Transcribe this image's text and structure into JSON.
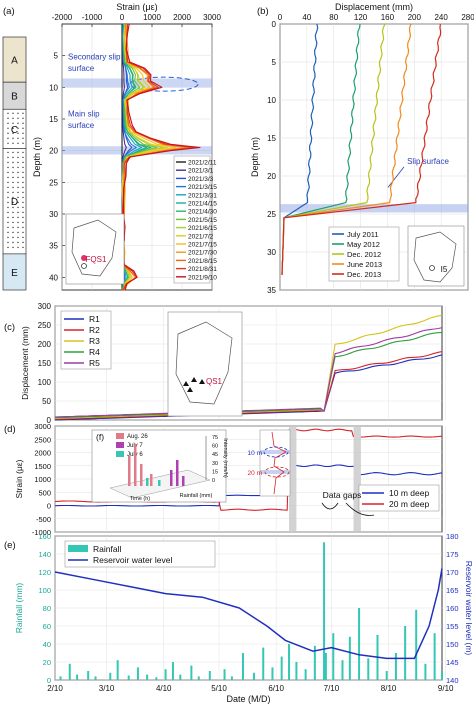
{
  "panels": {
    "a": "(a)",
    "b": "(b)",
    "c": "(c)",
    "d": "(d)",
    "e": "(e)",
    "f": "(f)"
  },
  "column": {
    "layers": [
      {
        "label": "A",
        "top": 0,
        "bottom": 7.5,
        "fill": "#ece4cc"
      },
      {
        "label": "B",
        "top": 7.5,
        "bottom": 12,
        "fill": "#d8d8d8"
      },
      {
        "label": "C",
        "top": 12,
        "bottom": 18.5,
        "fill": "#ffffff"
      },
      {
        "label": "D",
        "top": 18.5,
        "bottom": 36,
        "fill": "#ffffff"
      },
      {
        "label": "E",
        "top": 36,
        "bottom": 42,
        "fill": "#d6e8f4"
      }
    ]
  },
  "chart_data": [
    {
      "id": "a",
      "type": "line",
      "xlabel": "Strain (με)",
      "ylabel": "Depth (m)",
      "xlim": [
        -2000,
        3000
      ],
      "ylim": [
        0,
        42
      ],
      "y_reversed": true,
      "x_ticks": [
        -2000,
        -1000,
        0,
        1000,
        2000,
        3000
      ],
      "y_ticks": [
        5,
        10,
        15,
        20,
        25,
        30,
        35,
        40
      ],
      "annotations": [
        "Secondary slip surface",
        "Main slip surface"
      ],
      "legend_position": "bottom-right",
      "series_template": {
        "depth": [
          0,
          2,
          4,
          6,
          7,
          8,
          9,
          10,
          11,
          12,
          14,
          16,
          17,
          18,
          19,
          19.5,
          20,
          21,
          22,
          24,
          26,
          30,
          32,
          34,
          36,
          38,
          39,
          40,
          41,
          42
        ],
        "base": [
          150,
          120,
          140,
          200,
          650,
          900,
          900,
          1200,
          500,
          150,
          200,
          250,
          400,
          900,
          1500,
          2400,
          1500,
          250,
          80,
          60,
          40,
          30,
          20,
          20,
          20,
          40,
          300,
          450,
          150,
          50
        ]
      },
      "series": [
        {
          "name": "2021/2/11",
          "color": "#1f1f1f",
          "scale": 0.0
        },
        {
          "name": "2021/3/1",
          "color": "#4b2f8f",
          "scale": 0.05
        },
        {
          "name": "2021/3/3",
          "color": "#2d4fd6",
          "scale": 0.12
        },
        {
          "name": "2021/3/15",
          "color": "#1e78d2",
          "scale": 0.2
        },
        {
          "name": "2021/3/31",
          "color": "#1aa3c8",
          "scale": 0.27
        },
        {
          "name": "2021/4/15",
          "color": "#18b19a",
          "scale": 0.33
        },
        {
          "name": "2021/4/30",
          "color": "#2cb46c",
          "scale": 0.4
        },
        {
          "name": "2021/5/15",
          "color": "#6cc040",
          "scale": 0.47
        },
        {
          "name": "2021/6/15",
          "color": "#a7cf2e",
          "scale": 0.55
        },
        {
          "name": "2021/7/2",
          "color": "#d8d21d",
          "scale": 0.63
        },
        {
          "name": "2021/7/15",
          "color": "#f2c01c",
          "scale": 0.75
        },
        {
          "name": "2021/7/30",
          "color": "#f39a17",
          "scale": 0.87
        },
        {
          "name": "2021/8/15",
          "color": "#ee6a12",
          "scale": 0.95
        },
        {
          "name": "2021/8/31",
          "color": "#e2351a",
          "scale": 1.0
        },
        {
          "name": "2021/9/10",
          "color": "#c9121a",
          "scale": 1.05
        }
      ],
      "inset_label": "FQS1"
    },
    {
      "id": "b",
      "type": "line",
      "xlabel": "Displacement (mm)",
      "ylabel": "Depth (m)",
      "xlim": [
        0,
        280
      ],
      "ylim": [
        0,
        35
      ],
      "y_reversed": true,
      "x_ticks": [
        0,
        40,
        80,
        120,
        160,
        200,
        240,
        280
      ],
      "y_ticks": [
        0,
        5,
        10,
        15,
        20,
        25,
        30,
        35
      ],
      "annotations": [
        "Slip surface"
      ],
      "legend_position": "bottom-center",
      "series": [
        {
          "name": "July 2011",
          "color": "#1f5fb8",
          "surface": 55
        },
        {
          "name": "May 2012",
          "color": "#1aa06a",
          "surface": 118
        },
        {
          "name": "Dec. 2012",
          "color": "#b9c21a",
          "surface": 155
        },
        {
          "name": "June 2013",
          "color": "#f08a1c",
          "surface": 195
        },
        {
          "name": "Dec. 2013",
          "color": "#d42a1e",
          "surface": 240
        }
      ],
      "inset_label": "I5"
    },
    {
      "id": "c",
      "type": "line",
      "ylabel": "Displacement (mm)",
      "xlim": [
        0,
        210
      ],
      "ylim": [
        0,
        300
      ],
      "y_ticks": [
        0,
        50,
        100,
        150,
        200,
        250,
        300
      ],
      "legend_position": "top-left",
      "series": [
        {
          "name": "R1",
          "color": "#1f2fbf",
          "end": 170
        },
        {
          "name": "R2",
          "color": "#d8242a",
          "end": 178
        },
        {
          "name": "R3",
          "color": "#d8c21a",
          "end": 275
        },
        {
          "name": "R4",
          "color": "#2ea03c",
          "end": 232
        },
        {
          "name": "R5",
          "color": "#a23aa8",
          "end": 245
        }
      ],
      "inset_label": "QS1"
    },
    {
      "id": "d",
      "type": "line",
      "ylabel": "Strain (με)",
      "xlim": [
        0,
        210
      ],
      "ylim": [
        -1000,
        3000
      ],
      "y_ticks": [
        -1000,
        -500,
        0,
        500,
        1000,
        1500,
        2000,
        2500,
        3000
      ],
      "legend_position": "right",
      "annotations": [
        "Data gaps",
        "10 m",
        "20 m"
      ],
      "data_gaps": [
        [
          127,
          131
        ],
        [
          162,
          166
        ]
      ],
      "series": [
        {
          "name": "10 m deep",
          "color": "#1f2fbf"
        },
        {
          "name": "20 m deep",
          "color": "#d8242a"
        }
      ],
      "inset": {
        "panel": "(f)",
        "legend": [
          "Aug. 26",
          "July 7",
          "July 6"
        ],
        "legend_colors": [
          "#e07b8a",
          "#b040b0",
          "#3dc4b4"
        ],
        "axis_label": "Intensity (mm/h)",
        "axis_ticks": [
          0,
          15,
          30,
          45,
          60,
          75
        ],
        "x_label": "Time (h)",
        "z_label": "Rainfall (mm)"
      }
    },
    {
      "id": "e",
      "type": "bar",
      "xlabel": "Date (M/D)",
      "ylabel": "Rainfall (mm)",
      "y2label": "Reservoir water level (m)",
      "xlim": [
        0,
        210
      ],
      "ylim": [
        0,
        160
      ],
      "y2lim": [
        140,
        180
      ],
      "y_ticks": [
        0,
        20,
        40,
        60,
        80,
        100,
        120,
        140,
        160
      ],
      "y2_ticks": [
        140,
        145,
        150,
        155,
        160,
        165,
        170,
        175,
        180
      ],
      "x_ticks": [
        "2/10",
        "3/10",
        "4/10",
        "5/10",
        "6/10",
        "7/10",
        "8/10",
        "9/10"
      ],
      "x_tick_days": [
        0,
        28,
        59,
        89,
        120,
        150,
        181,
        212
      ],
      "legend_position": "top-left",
      "series": [
        {
          "name": "Rainfall",
          "color": "#33c7b4"
        },
        {
          "name": "Reservoir water level",
          "color": "#1f2fbf"
        }
      ],
      "rainfall": [
        {
          "day": 3,
          "v": 4
        },
        {
          "day": 8,
          "v": 18
        },
        {
          "day": 12,
          "v": 6
        },
        {
          "day": 18,
          "v": 10
        },
        {
          "day": 22,
          "v": 4
        },
        {
          "day": 30,
          "v": 8
        },
        {
          "day": 34,
          "v": 22
        },
        {
          "day": 40,
          "v": 5
        },
        {
          "day": 45,
          "v": 14
        },
        {
          "day": 50,
          "v": 6
        },
        {
          "day": 55,
          "v": 3
        },
        {
          "day": 60,
          "v": 12
        },
        {
          "day": 64,
          "v": 20
        },
        {
          "day": 68,
          "v": 6
        },
        {
          "day": 74,
          "v": 16
        },
        {
          "day": 78,
          "v": 4
        },
        {
          "day": 84,
          "v": 10
        },
        {
          "day": 92,
          "v": 12
        },
        {
          "day": 96,
          "v": 4
        },
        {
          "day": 102,
          "v": 30
        },
        {
          "day": 108,
          "v": 8
        },
        {
          "day": 113,
          "v": 36
        },
        {
          "day": 118,
          "v": 14
        },
        {
          "day": 123,
          "v": 26
        },
        {
          "day": 127,
          "v": 40
        },
        {
          "day": 131,
          "v": 20
        },
        {
          "day": 136,
          "v": 12
        },
        {
          "day": 141,
          "v": 38
        },
        {
          "day": 146,
          "v": 153
        },
        {
          "day": 147,
          "v": 30
        },
        {
          "day": 151,
          "v": 52
        },
        {
          "day": 156,
          "v": 22
        },
        {
          "day": 160,
          "v": 48
        },
        {
          "day": 165,
          "v": 80
        },
        {
          "day": 170,
          "v": 24
        },
        {
          "day": 175,
          "v": 50
        },
        {
          "day": 180,
          "v": 10
        },
        {
          "day": 185,
          "v": 30
        },
        {
          "day": 190,
          "v": 60
        },
        {
          "day": 196,
          "v": 78
        },
        {
          "day": 201,
          "v": 18
        },
        {
          "day": 206,
          "v": 52
        },
        {
          "day": 210,
          "v": 10
        }
      ],
      "reservoir": {
        "days": [
          0,
          20,
          40,
          60,
          80,
          100,
          115,
          125,
          140,
          150,
          165,
          180,
          195,
          203,
          208,
          212
        ],
        "levels": [
          170,
          168,
          166,
          164,
          163,
          160,
          155,
          151,
          148,
          149,
          147,
          146,
          146,
          155,
          165,
          171
        ]
      }
    }
  ]
}
